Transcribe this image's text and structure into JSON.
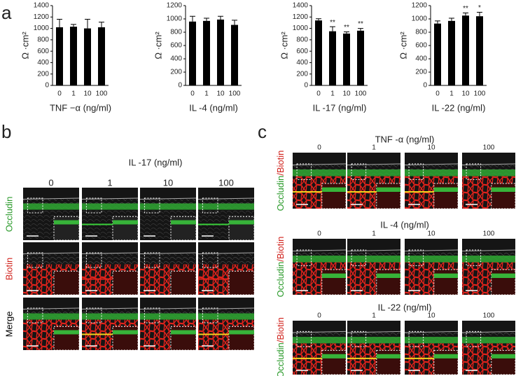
{
  "chart_data": [
    {
      "type": "bar",
      "panel_label": "a",
      "ylabel": "Ω ·cm²",
      "xlabel": "TNF −α (ng/ml)",
      "categories": [
        "0",
        "1",
        "10",
        "100"
      ],
      "values": [
        1020,
        1030,
        1000,
        1020
      ],
      "errors": [
        140,
        40,
        160,
        90
      ],
      "annotations": [
        null,
        null,
        null,
        null
      ],
      "color": "#000000",
      "ylim": [
        0,
        1400
      ],
      "yticks": [
        0,
        200,
        400,
        600,
        800,
        1000,
        1200,
        1400
      ]
    },
    {
      "type": "bar",
      "ylabel": "Ω ·cm²",
      "xlabel": "IL -4 (ng/ml)",
      "categories": [
        "0",
        "1",
        "10",
        "100"
      ],
      "values": [
        960,
        970,
        990,
        910
      ],
      "errors": [
        80,
        40,
        50,
        70
      ],
      "annotations": [
        null,
        null,
        null,
        null
      ],
      "color": "#000000",
      "ylim": [
        0,
        1200
      ],
      "yticks": [
        0,
        200,
        400,
        600,
        800,
        1000,
        1200
      ]
    },
    {
      "type": "bar",
      "ylabel": "Ω ·cm²",
      "xlabel": "IL -17 (ng/ml)",
      "categories": [
        "0",
        "1",
        "10",
        "100"
      ],
      "values": [
        1140,
        950,
        910,
        960
      ],
      "errors": [
        30,
        80,
        30,
        40
      ],
      "annotations": [
        null,
        "**",
        "**",
        "**"
      ],
      "color": "#000000",
      "ylim": [
        0,
        1400
      ],
      "yticks": [
        0,
        200,
        400,
        600,
        800,
        1000,
        1200,
        1400
      ]
    },
    {
      "type": "bar",
      "ylabel": "Ω ·cm²",
      "xlabel": "IL -22 (ng/ml)",
      "categories": [
        "0",
        "1",
        "10",
        "100"
      ],
      "values": [
        930,
        970,
        1050,
        1040
      ],
      "errors": [
        40,
        40,
        40,
        60
      ],
      "annotations": [
        null,
        null,
        "**",
        "*"
      ],
      "color": "#000000",
      "ylim": [
        0,
        1200
      ],
      "yticks": [
        0,
        200,
        400,
        600,
        800,
        1000,
        1200
      ]
    }
  ],
  "panel_b": {
    "label": "b",
    "title": "IL -17 (ng/ml)",
    "columns": [
      "0",
      "1",
      "10",
      "100"
    ],
    "rows": [
      "Occludin",
      "Biotin",
      "Merge"
    ]
  },
  "panel_c": {
    "label": "c",
    "row_label": [
      "Occludin",
      "/Biotin"
    ],
    "groups": [
      {
        "title": "TNF -α (ng/ml)",
        "columns": [
          "0",
          "1",
          "10",
          "100"
        ]
      },
      {
        "title": "IL -4 (ng/ml)",
        "columns": [
          "0",
          "1",
          "10",
          "100"
        ]
      },
      {
        "title": "IL -22 (ng/ml)",
        "columns": [
          "0",
          "1",
          "10",
          "100"
        ]
      }
    ]
  }
}
